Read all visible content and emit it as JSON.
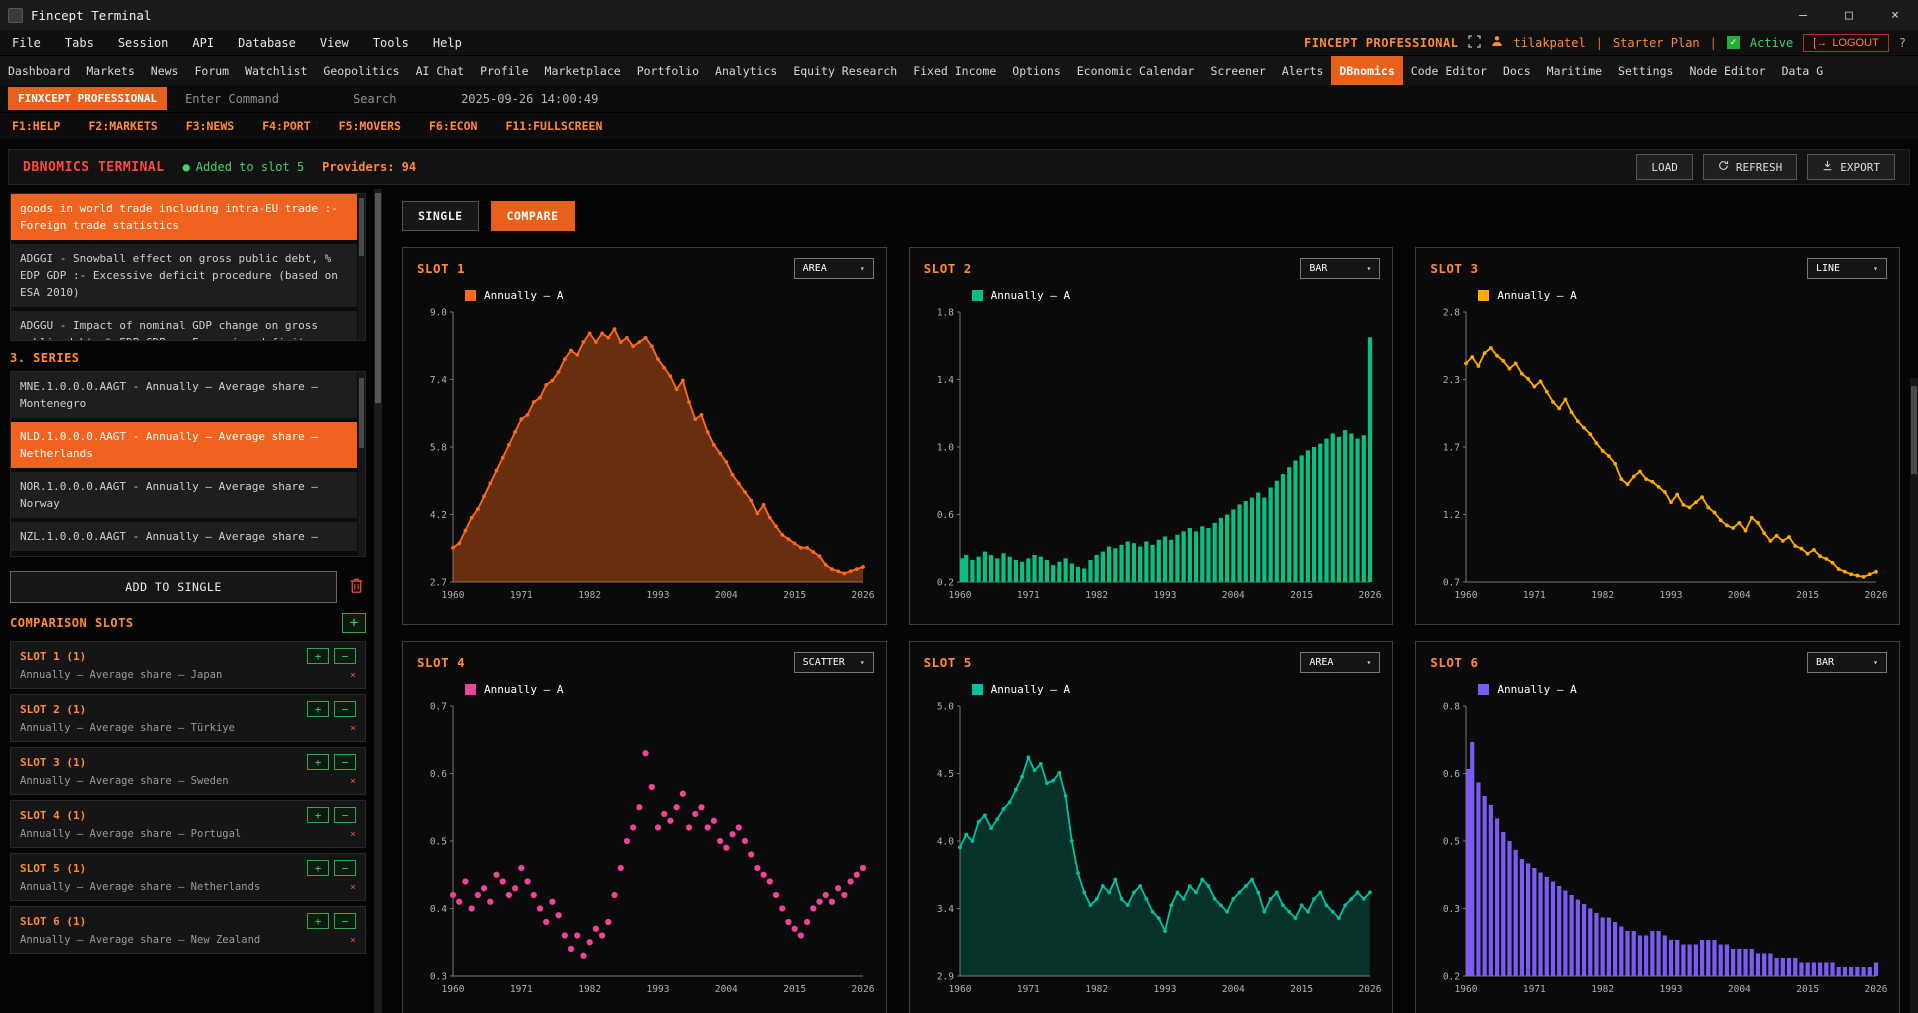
{
  "ui": {
    "chevron": "▾"
  },
  "window": {
    "title": "Fincept Terminal",
    "controls": {
      "minimize": "–",
      "maximize": "□",
      "close": "×"
    }
  },
  "menu": {
    "items": [
      "File",
      "Tabs",
      "Session",
      "API",
      "Database",
      "View",
      "Tools",
      "Help"
    ],
    "brand": "FINCEPT PROFESSIONAL",
    "user": "tilakpatel",
    "separator": "|",
    "plan": "Starter Plan",
    "status_check": "✓",
    "status": "Active",
    "logout_icon": "[→",
    "logout": "LOGOUT",
    "help": "?"
  },
  "nav": {
    "active": "DBnomics",
    "items": [
      "Dashboard",
      "Markets",
      "News",
      "Forum",
      "Watchlist",
      "Geopolitics",
      "AI Chat",
      "Profile",
      "Marketplace",
      "Portfolio",
      "Analytics",
      "Equity Research",
      "Fixed Income",
      "Options",
      "Economic Calendar",
      "Screener",
      "Alerts",
      "DBnomics",
      "Code Editor",
      "Docs",
      "Maritime",
      "Settings",
      "Node Editor",
      "Data G"
    ]
  },
  "command_bar": {
    "brand": "FINXCEPT PROFESSIONAL",
    "command_placeholder": "Enter Command",
    "search_placeholder": "Search",
    "timestamp": "2025-09-26 14:00:49"
  },
  "fn_keys": [
    "F1:HELP",
    "F2:MARKETS",
    "F3:NEWS",
    "F4:PORT",
    "F5:MOVERS",
    "F6:ECON",
    "F11:FULLSCREEN"
  ],
  "dbnomics": {
    "title": "DBNOMICS TERMINAL",
    "status_dot": "●",
    "status": "Added to slot 5",
    "providers": "Providers: 94",
    "load": "LOAD",
    "refresh": "REFRESH",
    "export": "EXPORT"
  },
  "sidebar": {
    "indicators": [
      {
        "text": "goods in world trade including intra-EU trade :- Foreign trade statistics",
        "selected": true
      },
      {
        "text": "ADGGI - Snowball effect on gross public debt, % EDP GDP :- Excessive deficit procedure (based on ESA 2010)",
        "selected": false
      },
      {
        "text": "ADGGU - Impact of nominal GDP change on gross public debt, % EDP GDP :- Excessive deficit",
        "selected": false
      }
    ],
    "series_header": "3. SERIES",
    "series": [
      {
        "text": "MNE.1.0.0.0.AAGT - Annually – Average share – Montenegro",
        "selected": false
      },
      {
        "text": "NLD.1.0.0.0.AAGT - Annually – Average share – Netherlands",
        "selected": true
      },
      {
        "text": "NOR.1.0.0.0.AAGT - Annually – Average share – Norway",
        "selected": false
      },
      {
        "text": "NZL.1.0.0.0.AAGT - Annually – Average share –",
        "selected": false
      }
    ],
    "add_button": "ADD TO SINGLE",
    "slots_header": "COMPARISON SLOTS",
    "plus": "+",
    "minus": "−",
    "close_x": "×",
    "slots": [
      {
        "label": "SLOT 1 (1)",
        "desc": "Annually – Average share – Japan"
      },
      {
        "label": "SLOT 2 (1)",
        "desc": "Annually – Average share – Türkiye"
      },
      {
        "label": "SLOT 3 (1)",
        "desc": "Annually – Average share – Sweden"
      },
      {
        "label": "SLOT 4 (1)",
        "desc": "Annually – Average share – Portugal"
      },
      {
        "label": "SLOT 5 (1)",
        "desc": "Annually – Average share – Netherlands"
      },
      {
        "label": "SLOT 6 (1)",
        "desc": "Annually – Average share – New Zealand"
      }
    ]
  },
  "view_tabs": {
    "active": "COMPARE",
    "items": [
      "SINGLE",
      "COMPARE"
    ]
  },
  "chart_data": [
    {
      "title": "SLOT 1",
      "type": "area",
      "type_label": "AREA",
      "legend": "Annually – A",
      "color": "#ff6a1a",
      "fill_opacity": 0.38,
      "markers": true,
      "ylim": [
        2.7,
        9.0
      ],
      "yticks": [
        "9.0",
        "7.4",
        "5.8",
        "4.2",
        "2.7"
      ],
      "xticks": [
        "1960",
        "1971",
        "1982",
        "1993",
        "2004",
        "2015",
        "2026"
      ],
      "x_range": [
        1960,
        2026
      ],
      "values": [
        3.5,
        3.6,
        3.9,
        4.2,
        4.4,
        4.7,
        5.0,
        5.3,
        5.6,
        5.9,
        6.2,
        6.5,
        6.6,
        6.9,
        7.0,
        7.3,
        7.4,
        7.6,
        7.9,
        8.1,
        8.0,
        8.3,
        8.5,
        8.3,
        8.5,
        8.4,
        8.6,
        8.3,
        8.4,
        8.2,
        8.3,
        8.4,
        8.2,
        7.9,
        7.7,
        7.5,
        7.2,
        7.4,
        6.9,
        6.5,
        6.6,
        6.2,
        5.9,
        5.7,
        5.5,
        5.2,
        5.0,
        4.8,
        4.6,
        4.3,
        4.5,
        4.2,
        4.0,
        3.8,
        3.7,
        3.6,
        3.5,
        3.5,
        3.4,
        3.3,
        3.1,
        3.0,
        2.95,
        2.9,
        2.95,
        3.0,
        3.05
      ]
    },
    {
      "title": "SLOT 2",
      "type": "bar",
      "type_label": "BAR",
      "legend": "Annually – A",
      "color": "#0bbf83",
      "fill_opacity": 1,
      "markers": false,
      "ylim": [
        0.2,
        1.8
      ],
      "yticks": [
        "1.8",
        "1.4",
        "1.0",
        "0.6",
        "0.2"
      ],
      "xticks": [
        "1960",
        "1971",
        "1982",
        "1993",
        "2004",
        "2015",
        "2026"
      ],
      "x_range": [
        1960,
        2026
      ],
      "values": [
        0.34,
        0.36,
        0.33,
        0.35,
        0.38,
        0.36,
        0.34,
        0.37,
        0.35,
        0.33,
        0.32,
        0.34,
        0.36,
        0.35,
        0.33,
        0.3,
        0.32,
        0.34,
        0.31,
        0.29,
        0.28,
        0.33,
        0.36,
        0.38,
        0.41,
        0.4,
        0.42,
        0.44,
        0.43,
        0.41,
        0.44,
        0.42,
        0.45,
        0.47,
        0.45,
        0.48,
        0.5,
        0.52,
        0.5,
        0.53,
        0.52,
        0.55,
        0.58,
        0.6,
        0.63,
        0.66,
        0.68,
        0.7,
        0.73,
        0.7,
        0.76,
        0.8,
        0.84,
        0.88,
        0.92,
        0.95,
        0.98,
        1.0,
        1.02,
        1.05,
        1.08,
        1.06,
        1.1,
        1.08,
        1.05,
        1.07,
        1.65
      ]
    },
    {
      "title": "SLOT 3",
      "type": "line",
      "type_label": "LINE",
      "legend": "Annually – A",
      "color": "#ffaa00",
      "fill_opacity": 1,
      "markers": true,
      "ylim": [
        0.7,
        2.8
      ],
      "yticks": [
        "2.8",
        "2.3",
        "1.7",
        "1.2",
        "0.7"
      ],
      "xticks": [
        "1960",
        "1971",
        "1982",
        "1993",
        "2004",
        "2015",
        "2026"
      ],
      "x_range": [
        1960,
        2026
      ],
      "values": [
        2.4,
        2.45,
        2.38,
        2.48,
        2.52,
        2.46,
        2.42,
        2.36,
        2.4,
        2.32,
        2.28,
        2.22,
        2.26,
        2.18,
        2.1,
        2.05,
        2.12,
        2.02,
        1.95,
        1.9,
        1.85,
        1.78,
        1.72,
        1.68,
        1.62,
        1.5,
        1.46,
        1.52,
        1.56,
        1.5,
        1.48,
        1.44,
        1.4,
        1.32,
        1.38,
        1.3,
        1.28,
        1.32,
        1.36,
        1.28,
        1.24,
        1.18,
        1.14,
        1.12,
        1.16,
        1.1,
        1.2,
        1.16,
        1.08,
        1.02,
        1.06,
        1.02,
        1.05,
        0.98,
        0.96,
        0.92,
        0.95,
        0.9,
        0.88,
        0.85,
        0.8,
        0.78,
        0.76,
        0.75,
        0.74,
        0.76,
        0.78
      ]
    },
    {
      "title": "SLOT 4",
      "type": "scatter",
      "type_label": "SCATTER",
      "legend": "Annually – A",
      "color": "#f0439c",
      "fill_opacity": 1,
      "markers": false,
      "ylim": [
        0.3,
        0.7
      ],
      "yticks": [
        "0.7",
        "0.6",
        "0.5",
        "0.4",
        "0.3"
      ],
      "xticks": [
        "1960",
        "1971",
        "1982",
        "1993",
        "2004",
        "2015",
        "2026"
      ],
      "x_range": [
        1960,
        2026
      ],
      "values": [
        0.42,
        0.41,
        0.44,
        0.4,
        0.42,
        0.43,
        0.41,
        0.45,
        0.44,
        0.42,
        0.43,
        0.46,
        0.44,
        0.42,
        0.4,
        0.38,
        0.41,
        0.39,
        0.36,
        0.34,
        0.36,
        0.33,
        0.35,
        0.37,
        0.36,
        0.38,
        0.42,
        0.46,
        0.5,
        0.52,
        0.55,
        0.63,
        0.58,
        0.52,
        0.54,
        0.53,
        0.55,
        0.57,
        0.52,
        0.54,
        0.55,
        0.52,
        0.53,
        0.5,
        0.49,
        0.51,
        0.52,
        0.5,
        0.48,
        0.46,
        0.45,
        0.44,
        0.42,
        0.4,
        0.38,
        0.37,
        0.36,
        0.38,
        0.4,
        0.41,
        0.42,
        0.41,
        0.43,
        0.42,
        0.44,
        0.45,
        0.46
      ]
    },
    {
      "title": "SLOT 5",
      "type": "area",
      "type_label": "AREA",
      "legend": "Annually – A",
      "color": "#00c2a0",
      "fill_opacity": 0.22,
      "markers": true,
      "ylim": [
        2.9,
        5.0
      ],
      "yticks": [
        "5.0",
        "4.5",
        "4.0",
        "3.4",
        "2.9"
      ],
      "xticks": [
        "1960",
        "1971",
        "1982",
        "1993",
        "2004",
        "2015",
        "2026"
      ],
      "x_range": [
        1960,
        2026
      ],
      "values": [
        3.9,
        4.0,
        3.95,
        4.1,
        4.15,
        4.05,
        4.12,
        4.2,
        4.25,
        4.35,
        4.45,
        4.6,
        4.5,
        4.55,
        4.4,
        4.42,
        4.48,
        4.3,
        3.95,
        3.7,
        3.55,
        3.45,
        3.5,
        3.6,
        3.55,
        3.65,
        3.5,
        3.45,
        3.55,
        3.6,
        3.5,
        3.4,
        3.35,
        3.25,
        3.45,
        3.55,
        3.5,
        3.6,
        3.55,
        3.65,
        3.6,
        3.5,
        3.45,
        3.4,
        3.5,
        3.55,
        3.6,
        3.65,
        3.55,
        3.4,
        3.5,
        3.55,
        3.45,
        3.4,
        3.35,
        3.45,
        3.4,
        3.5,
        3.55,
        3.45,
        3.4,
        3.35,
        3.45,
        3.5,
        3.55,
        3.5,
        3.55
      ]
    },
    {
      "title": "SLOT 6",
      "type": "bar",
      "type_label": "BAR",
      "legend": "Annually – A",
      "color": "#7b5cf0",
      "fill_opacity": 1,
      "markers": false,
      "ylim": [
        0.2,
        0.8
      ],
      "yticks": [
        "0.8",
        "0.6",
        "0.5",
        "0.3",
        "0.2"
      ],
      "xticks": [
        "1960",
        "1971",
        "1982",
        "1993",
        "2004",
        "2015",
        "2026"
      ],
      "x_range": [
        1960,
        2026
      ],
      "values": [
        0.66,
        0.72,
        0.63,
        0.6,
        0.58,
        0.55,
        0.52,
        0.5,
        0.48,
        0.46,
        0.45,
        0.44,
        0.43,
        0.42,
        0.41,
        0.4,
        0.39,
        0.38,
        0.37,
        0.36,
        0.35,
        0.34,
        0.33,
        0.33,
        0.32,
        0.31,
        0.3,
        0.3,
        0.29,
        0.29,
        0.3,
        0.3,
        0.29,
        0.28,
        0.28,
        0.27,
        0.27,
        0.27,
        0.28,
        0.28,
        0.28,
        0.27,
        0.27,
        0.26,
        0.26,
        0.26,
        0.26,
        0.25,
        0.25,
        0.25,
        0.24,
        0.24,
        0.24,
        0.24,
        0.23,
        0.23,
        0.23,
        0.23,
        0.23,
        0.23,
        0.22,
        0.22,
        0.22,
        0.22,
        0.22,
        0.22,
        0.23
      ]
    }
  ]
}
